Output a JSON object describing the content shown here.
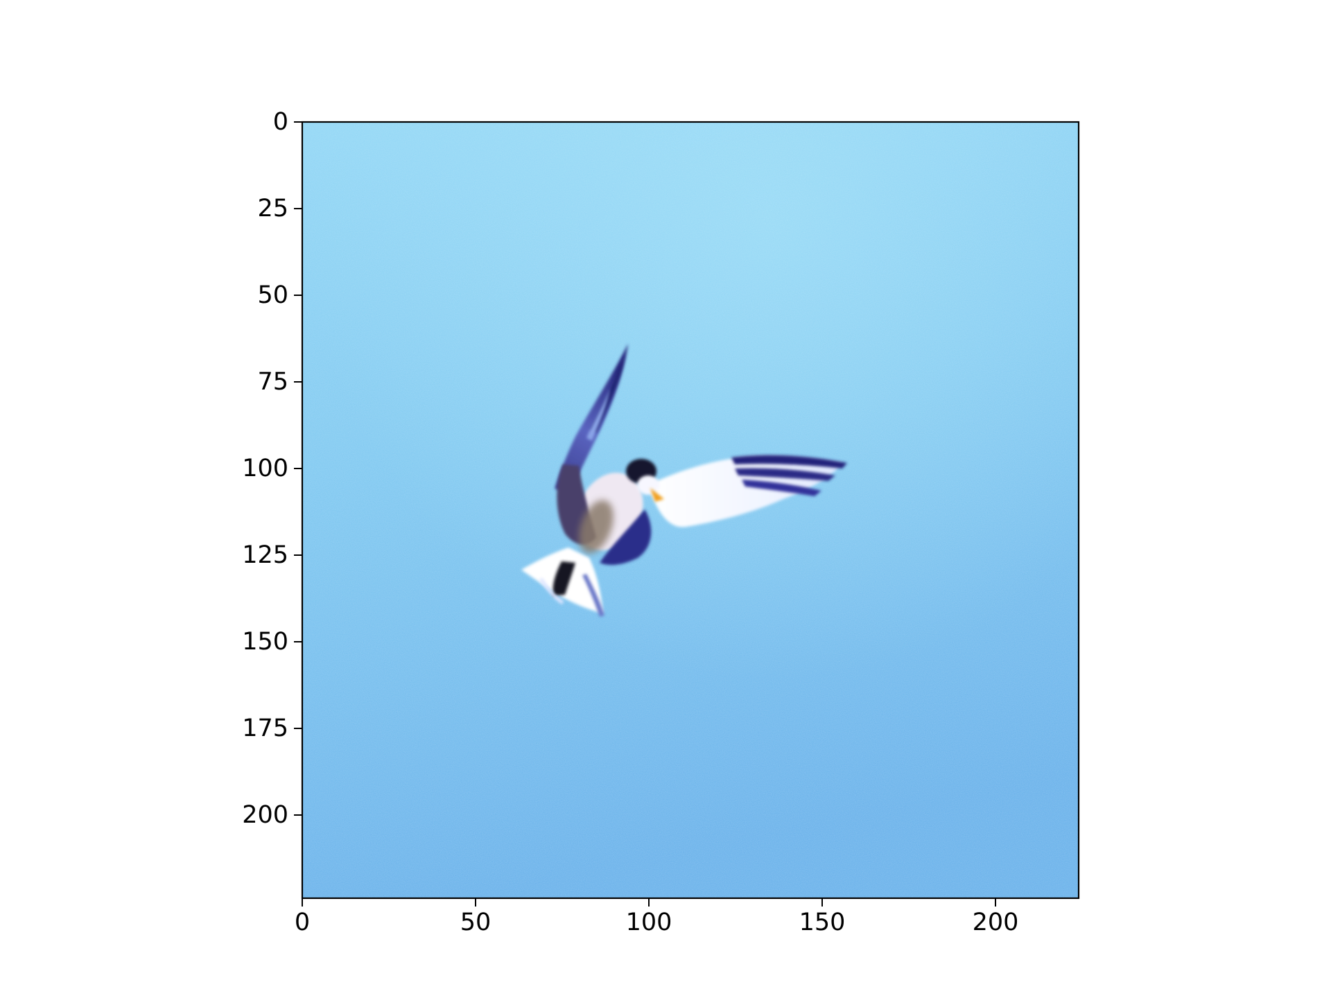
{
  "image": {
    "subject": "bird-in-flight",
    "x_range": [
      0,
      224
    ],
    "y_range": [
      0,
      224
    ],
    "y_inverted": true
  },
  "axes": {
    "x_ticks": [
      {
        "value": 0,
        "label": "0"
      },
      {
        "value": 50,
        "label": "50"
      },
      {
        "value": 100,
        "label": "100"
      },
      {
        "value": 150,
        "label": "150"
      },
      {
        "value": 200,
        "label": "200"
      }
    ],
    "y_ticks": [
      {
        "value": 0,
        "label": "0"
      },
      {
        "value": 25,
        "label": "25"
      },
      {
        "value": 50,
        "label": "50"
      },
      {
        "value": 75,
        "label": "75"
      },
      {
        "value": 100,
        "label": "100"
      },
      {
        "value": 125,
        "label": "125"
      },
      {
        "value": 150,
        "label": "150"
      },
      {
        "value": 175,
        "label": "175"
      },
      {
        "value": 200,
        "label": "200"
      }
    ]
  },
  "colors": {
    "sky_light": "#8fd6f5",
    "sky_mid": "#76c2ef",
    "sky_dark": "#64aeea",
    "wing_dark": "#23237a",
    "wing_mid": "#4a4fa8",
    "body_light": "#f4f8ff",
    "body_brown": "#8a7a6a",
    "beak": "#f0a020",
    "axis": "#000000"
  }
}
